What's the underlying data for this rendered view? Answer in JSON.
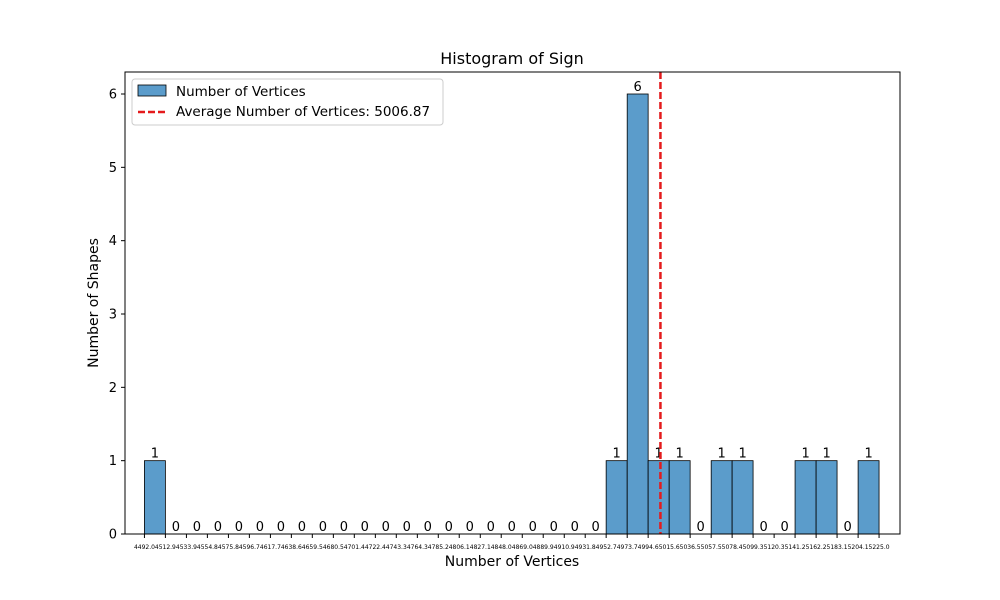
{
  "chart_data": {
    "type": "bar",
    "title": "Histogram of Sign",
    "xlabel": "Number of Vertices",
    "ylabel": "Number of Shapes",
    "xlim": [
      4472.6,
      5245.9
    ],
    "ylim": [
      0,
      6.3
    ],
    "yticks": [
      0,
      1,
      2,
      3,
      4,
      5,
      6
    ],
    "grid": false,
    "legend_position": "upper-left",
    "bin_edges": [
      4492.0,
      4512.9,
      4533.9,
      4554.8,
      4575.8,
      4596.7,
      4617.7,
      4638.6,
      4659.5,
      4680.5,
      4701.4,
      4722.4,
      4743.3,
      4764.3,
      4785.2,
      4806.1,
      4827.1,
      4848.0,
      4869.0,
      4889.9,
      4910.9,
      4931.8,
      4952.7,
      4973.7,
      4994.6,
      5015.6,
      5036.5,
      5057.5,
      5078.4,
      5099.3,
      5120.3,
      5141.2,
      5162.2,
      5183.1,
      5204.1,
      5225.0
    ],
    "tick_labels": [
      "4492.0",
      "4512.9",
      "4533.9",
      "4554.8",
      "4575.8",
      "4596.7",
      "4617.7",
      "4638.6",
      "4659.5",
      "4680.5",
      "4701.4",
      "4722.4",
      "4743.3",
      "4764.3",
      "4785.2",
      "4806.1",
      "4827.1",
      "4848.0",
      "4869.0",
      "4889.9",
      "4910.9",
      "4931.8",
      "4952.7",
      "4973.7",
      "4994.6",
      "5015.6",
      "5036.5",
      "5057.5",
      "5078.4",
      "5099.3",
      "5120.3",
      "5141.2",
      "5162.2",
      "5183.1",
      "5204.1",
      "5225.0"
    ],
    "counts": [
      1,
      0,
      0,
      0,
      0,
      0,
      0,
      0,
      0,
      0,
      0,
      0,
      0,
      0,
      0,
      0,
      0,
      0,
      0,
      0,
      0,
      0,
      1,
      6,
      1,
      1,
      0,
      1,
      1,
      0,
      0,
      1,
      1,
      0,
      1
    ],
    "series": [
      {
        "name": "Number of Vertices",
        "color": "#5b9ccb"
      }
    ],
    "average_line": {
      "value": 5006.87,
      "label": "Average Number of Vertices: 5006.87",
      "color": "#e41a1c"
    }
  }
}
